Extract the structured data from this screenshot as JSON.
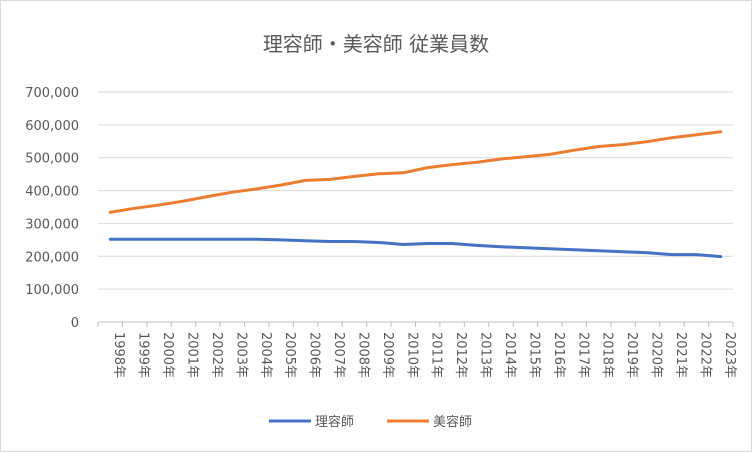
{
  "chart_data": {
    "type": "line",
    "title": "理容師・美容師 従業員数",
    "xlabel": "",
    "ylabel": "",
    "categories": [
      "1998年",
      "1999年",
      "2000年",
      "2001年",
      "2002年",
      "2003年",
      "2004年",
      "2005年",
      "2006年",
      "2007年",
      "2008年",
      "2009年",
      "2010年",
      "2011年",
      "2012年",
      "2013年",
      "2014年",
      "2015年",
      "2016年",
      "2017年",
      "2018年",
      "2019年",
      "2020年",
      "2021年",
      "2022年",
      "2023年"
    ],
    "y_ticks": [
      "0",
      "100,000",
      "200,000",
      "300,000",
      "400,000",
      "500,000",
      "600,000",
      "700,000"
    ],
    "ylim": [
      0,
      700000
    ],
    "grid": true,
    "legend_position": "bottom",
    "series": [
      {
        "name": "理容師",
        "color": "#4472C4",
        "values": [
          252000,
          252000,
          252000,
          252000,
          252000,
          252000,
          252000,
          250000,
          247000,
          245000,
          245000,
          242000,
          236000,
          239000,
          239000,
          233000,
          229000,
          226000,
          223000,
          220000,
          217000,
          214000,
          211000,
          205000,
          205000,
          199000
        ]
      },
      {
        "name": "美容師",
        "color": "#ED7D31",
        "values": [
          334000,
          346000,
          356000,
          368000,
          382000,
          395000,
          405000,
          417000,
          431000,
          434000,
          443000,
          451000,
          454000,
          470000,
          479000,
          486000,
          496000,
          503000,
          510000,
          523000,
          534000,
          540000,
          549000,
          561000,
          570000,
          579000
        ]
      }
    ]
  }
}
